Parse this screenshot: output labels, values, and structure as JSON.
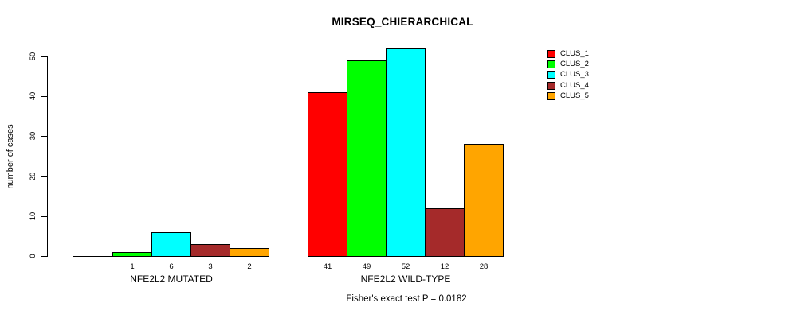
{
  "chart_data": {
    "type": "bar",
    "title": "MIRSEQ_CHIERARCHICAL",
    "ylabel": "number of cases",
    "xlabel": "",
    "footnote": "Fisher's exact test P = 0.0182",
    "yticks": [
      0,
      10,
      20,
      30,
      40,
      50
    ],
    "ylim": [
      0,
      52
    ],
    "grid": false,
    "legend_position": "top-right",
    "series": [
      {
        "name": "CLUS_1",
        "color": "#FF0000"
      },
      {
        "name": "CLUS_2",
        "color": "#00FF00"
      },
      {
        "name": "CLUS_3",
        "color": "#00FFFF"
      },
      {
        "name": "CLUS_4",
        "color": "#A52A2A"
      },
      {
        "name": "CLUS_5",
        "color": "#FFA500"
      }
    ],
    "categories": [
      "NFE2L2 MUTATED",
      "NFE2L2 WILD-TYPE"
    ],
    "groups": [
      {
        "label": "NFE2L2 MUTATED",
        "values": [
          0,
          1,
          6,
          3,
          2
        ],
        "bar_labels": [
          "",
          "1",
          "6",
          "3",
          "2"
        ]
      },
      {
        "label": "NFE2L2 WILD-TYPE",
        "values": [
          41,
          49,
          52,
          12,
          28
        ],
        "bar_labels": [
          "41",
          "49",
          "52",
          "12",
          "28"
        ]
      }
    ]
  }
}
